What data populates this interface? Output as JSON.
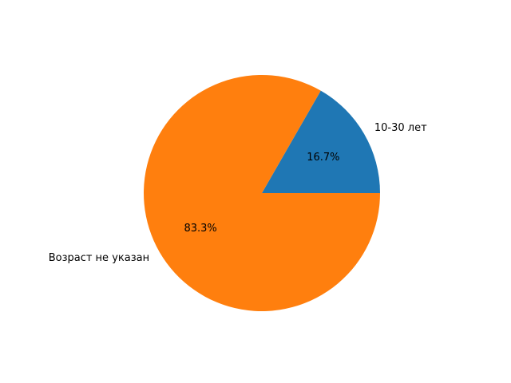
{
  "chart_data": {
    "type": "pie",
    "categories": [
      "10-30 лет",
      "Возраст не указан"
    ],
    "values": [
      16.7,
      83.3
    ],
    "percent_labels": [
      "16.7%",
      "83.3%"
    ],
    "colors": [
      "#1f77b4",
      "#ff7f0e"
    ],
    "start_angle_deg": 0,
    "direction": "counterclockwise"
  }
}
